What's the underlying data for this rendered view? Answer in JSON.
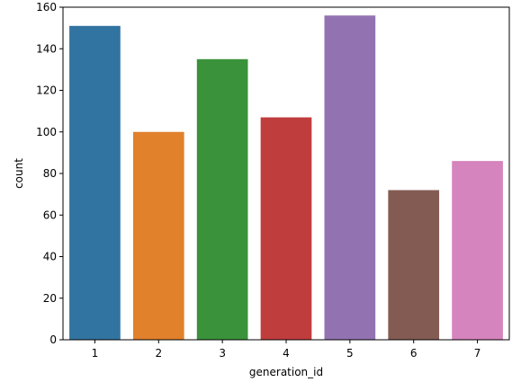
{
  "chart_data": {
    "type": "bar",
    "categories": [
      "1",
      "2",
      "3",
      "4",
      "5",
      "6",
      "7"
    ],
    "values": [
      151,
      100,
      135,
      107,
      156,
      72,
      86
    ],
    "colors": [
      "#3274a1",
      "#e1812c",
      "#3a923a",
      "#c03d3e",
      "#9372b2",
      "#845b53",
      "#d684bd"
    ],
    "title": "",
    "xlabel": "generation_id",
    "ylabel": "count",
    "ylim": [
      0,
      160
    ],
    "yticks": [
      0,
      20,
      40,
      60,
      80,
      100,
      120,
      140,
      160
    ],
    "grid": false,
    "legend": "none"
  }
}
